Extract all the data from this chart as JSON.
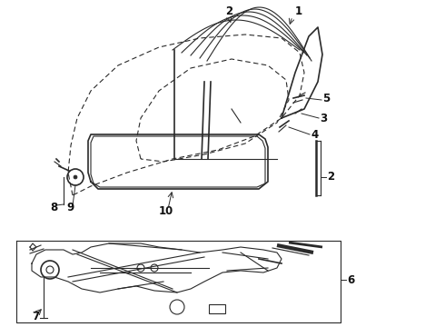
{
  "bg_color": "#ffffff",
  "line_color": "#2a2a2a",
  "label_color": "#111111",
  "figsize": [
    4.9,
    3.6
  ],
  "dpi": 100
}
